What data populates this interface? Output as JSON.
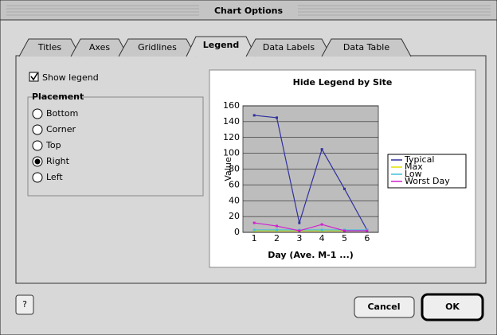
{
  "window": {
    "title": "Chart Options"
  },
  "tabs": [
    "Titles",
    "Axes",
    "Gridlines",
    "Legend",
    "Data Labels",
    "Data Table"
  ],
  "active_tab": 3,
  "legend_options": {
    "show_legend": "Show legend",
    "show_legend_checked": true,
    "placement_title": "Placement",
    "placements": [
      "Bottom",
      "Corner",
      "Top",
      "Right",
      "Left"
    ],
    "selected": 3
  },
  "buttons": {
    "help": "?",
    "cancel": "Cancel",
    "ok": "OK"
  },
  "preview": {
    "type": "line",
    "title": "Hide Legend by Site",
    "x_label": "Day (Ave. M-1 ...)",
    "y_label": "Value",
    "categories": [
      "1",
      "2",
      "3",
      "4",
      "5",
      "6"
    ],
    "ylim": [
      0,
      160
    ],
    "yticks": [
      0,
      20,
      40,
      60,
      80,
      100,
      120,
      140,
      160
    ],
    "grid": true,
    "legend_position": "right",
    "series": [
      {
        "name": "Typical",
        "color": "#3030a0",
        "values": [
          148,
          145,
          12,
          105,
          55,
          3
        ]
      },
      {
        "name": "Max",
        "color": "#e0e000",
        "values": [
          2,
          2,
          2,
          2,
          2,
          2
        ]
      },
      {
        "name": "Low",
        "color": "#40c0e0",
        "values": [
          3,
          3,
          3,
          3,
          3,
          3
        ]
      },
      {
        "name": "Worst Day",
        "color": "#d020d0",
        "values": [
          12,
          8,
          2,
          10,
          2,
          2
        ]
      }
    ]
  }
}
